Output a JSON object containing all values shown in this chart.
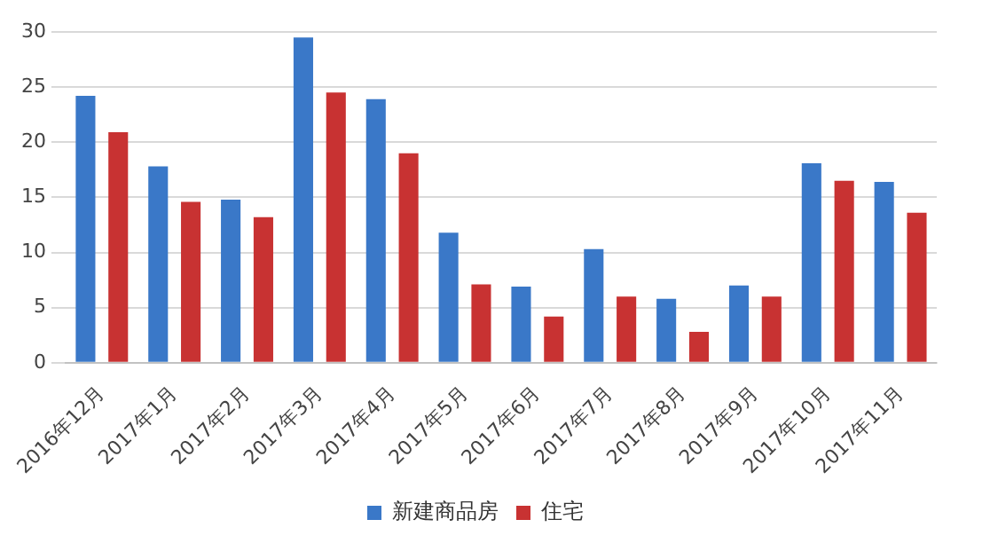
{
  "chart_data": {
    "type": "bar",
    "categories": [
      "2016年12月",
      "2017年1月",
      "2017年2月",
      "2017年3月",
      "2017年4月",
      "2017年5月",
      "2017年6月",
      "2017年7月",
      "2017年8月",
      "2017年9月",
      "2017年10月",
      "2017年11月"
    ],
    "series": [
      {
        "name": "新建商品房",
        "color": "#3a78c8",
        "values": [
          24.2,
          17.8,
          14.8,
          29.5,
          23.9,
          11.8,
          6.9,
          10.3,
          5.8,
          7.0,
          18.1,
          16.4
        ]
      },
      {
        "name": "住宅",
        "color": "#c83232",
        "values": [
          20.9,
          14.6,
          13.2,
          24.5,
          19.0,
          7.1,
          4.2,
          6.0,
          2.8,
          6.0,
          16.5,
          13.6
        ]
      }
    ],
    "ylim": [
      0,
      30
    ],
    "yticks": [
      0,
      5,
      10,
      15,
      20,
      25,
      30
    ],
    "grid": "y",
    "legend": "bottom"
  }
}
